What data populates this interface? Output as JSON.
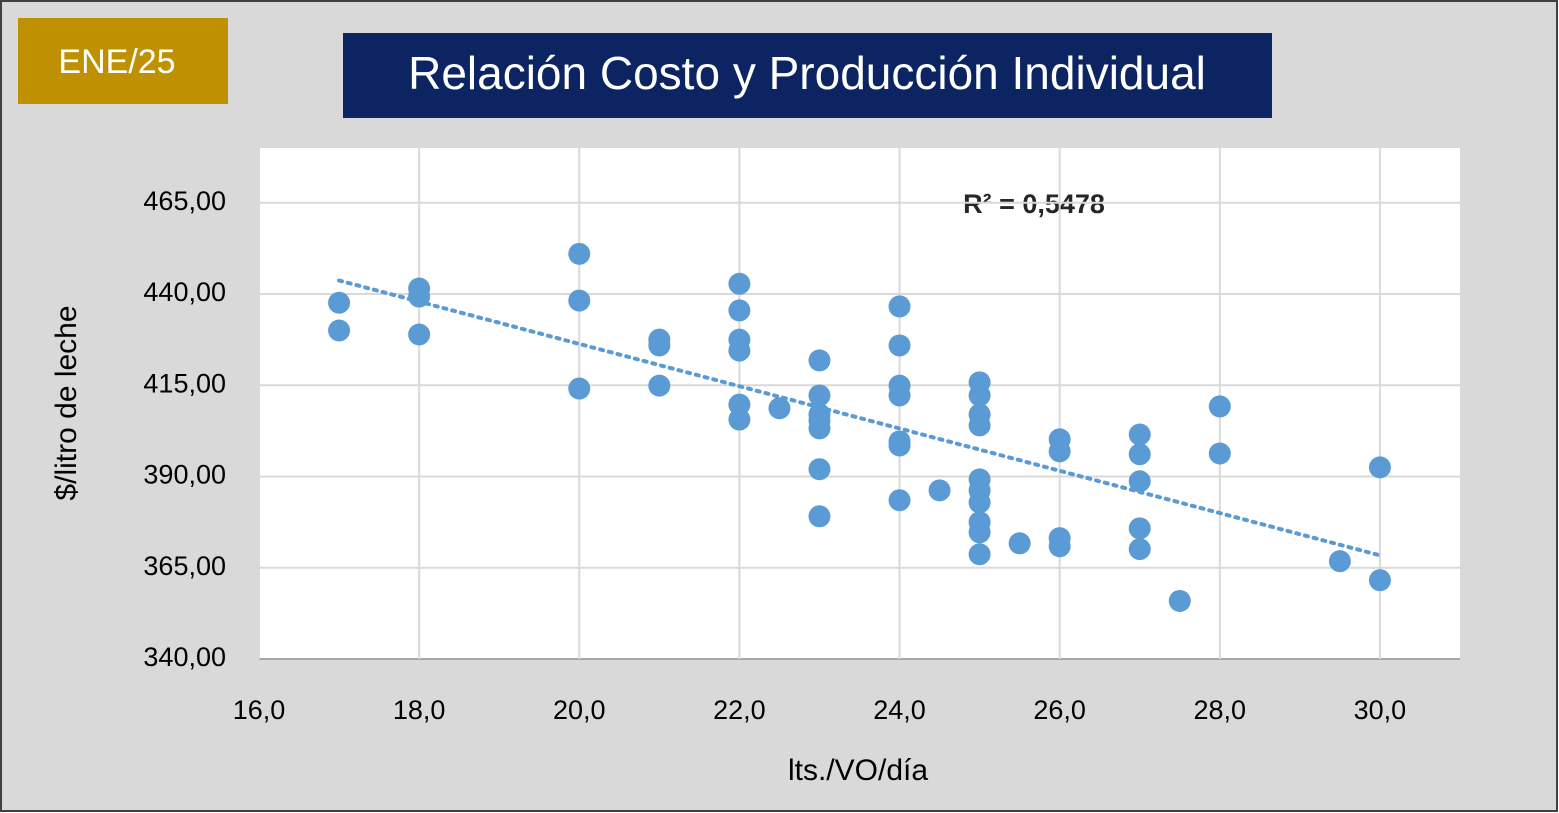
{
  "chart_data": {
    "type": "scatter",
    "badge": "ENE/25",
    "title": "Relación Costo y Producción Individual",
    "x_label": "lts./VO/día",
    "y_label": "$/litro de leche",
    "annotation": "R² = 0,5478",
    "xlim": [
      16,
      31
    ],
    "ylim": [
      340,
      480
    ],
    "xticks": [
      {
        "value": 16,
        "label": "16,0"
      },
      {
        "value": 18,
        "label": "18,0"
      },
      {
        "value": 20,
        "label": "20,0"
      },
      {
        "value": 22,
        "label": "22,0"
      },
      {
        "value": 24,
        "label": "24,0"
      },
      {
        "value": 26,
        "label": "26,0"
      },
      {
        "value": 28,
        "label": "28,0"
      },
      {
        "value": 30,
        "label": "30,0"
      }
    ],
    "yticks": [
      {
        "value": 340,
        "label": "340,00"
      },
      {
        "value": 365,
        "label": "365,00"
      },
      {
        "value": 390,
        "label": "390,00"
      },
      {
        "value": 415,
        "label": "415,00"
      },
      {
        "value": 440,
        "label": "440,00"
      },
      {
        "value": 465,
        "label": "465,00"
      }
    ],
    "grid": true,
    "series": [
      {
        "color": "#5b9bd5",
        "x": [
          17,
          17,
          18,
          18,
          18,
          20,
          20,
          20,
          21,
          21,
          21,
          22,
          22,
          22,
          22,
          22,
          22,
          22.5,
          23,
          23,
          23,
          23,
          23,
          23,
          23,
          24,
          24,
          24,
          24,
          24,
          24,
          24,
          24.5,
          25,
          25,
          25,
          25,
          25,
          25,
          25,
          25,
          25,
          25,
          25.5,
          26,
          26,
          26,
          26,
          27,
          27,
          27,
          27,
          27,
          27.5,
          28,
          28,
          29.5,
          30,
          30
        ],
        "values": [
          437.6,
          430.0,
          441.5,
          439.3,
          428.9,
          451.0,
          438.2,
          414.1,
          427.5,
          425.9,
          414.9,
          442.8,
          435.5,
          427.5,
          424.5,
          409.7,
          405.6,
          408.7,
          421.8,
          412.2,
          407.0,
          405.4,
          403.2,
          392.0,
          379.1,
          436.6,
          425.9,
          414.9,
          412.2,
          399.6,
          398.5,
          383.5,
          386.2,
          415.8,
          412.2,
          407.0,
          404.0,
          389.2,
          386.2,
          382.9,
          377.5,
          374.7,
          368.7,
          371.7,
          400.2,
          396.9,
          373.1,
          370.9,
          401.5,
          396.1,
          388.7,
          375.8,
          370.1,
          355.9,
          409.2,
          396.3,
          366.8,
          392.5,
          361.6
        ]
      }
    ],
    "trendline": {
      "color": "#5b9bd5",
      "x": [
        17,
        30
      ],
      "values": [
        443.7,
        368.4
      ]
    }
  }
}
